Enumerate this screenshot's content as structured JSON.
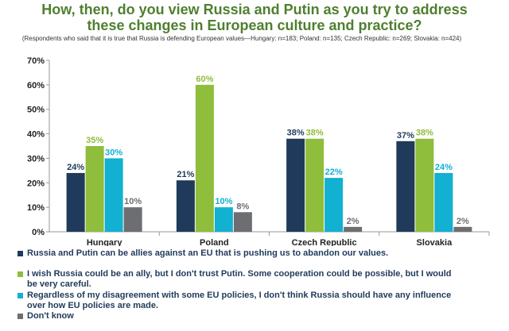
{
  "title": "How, then, do you view Russia and Putin as you try to address\nthese changes in European culture and practice?",
  "note": "(Respondents who said that it is true that Russia is defending European values—Hungary: n=183; Poland: n=135; Czech Republic: n=269; Slovakia: n=424)",
  "colors": {
    "series": [
      "#1f3a5a",
      "#8fbd3c",
      "#12b0d1",
      "#6d6e71"
    ],
    "title": "#4f7f2f",
    "axis_text": "#222222"
  },
  "chart_data": {
    "type": "bar",
    "categories": [
      "Hungary",
      "Poland",
      "Czech Republic",
      "Slovakia"
    ],
    "series": [
      {
        "name": "Russia and Putin can be allies against an EU that is pushing us to abandon our values.",
        "values": [
          24,
          21,
          38,
          37
        ]
      },
      {
        "name": "I wish Russia could be an ally, but I don't trust Putin. Some cooperation could be possible, but I would be very careful.",
        "values": [
          35,
          60,
          38,
          38
        ]
      },
      {
        "name": "Regardless of my disagreement with some EU policies, I don't think Russia should have any influence over how EU policies are made.",
        "values": [
          30,
          10,
          22,
          24
        ]
      },
      {
        "name": "Don't know",
        "values": [
          10,
          8,
          2,
          2
        ]
      }
    ],
    "ylim": [
      0,
      70
    ],
    "yticks": [
      0,
      10,
      20,
      30,
      40,
      50,
      60,
      70
    ],
    "ytick_labels": [
      "0%",
      "10%",
      "20%",
      "30%",
      "40%",
      "50%",
      "60%",
      "70%"
    ],
    "value_suffix": "%",
    "grid": false,
    "legend_position": "bottom"
  }
}
